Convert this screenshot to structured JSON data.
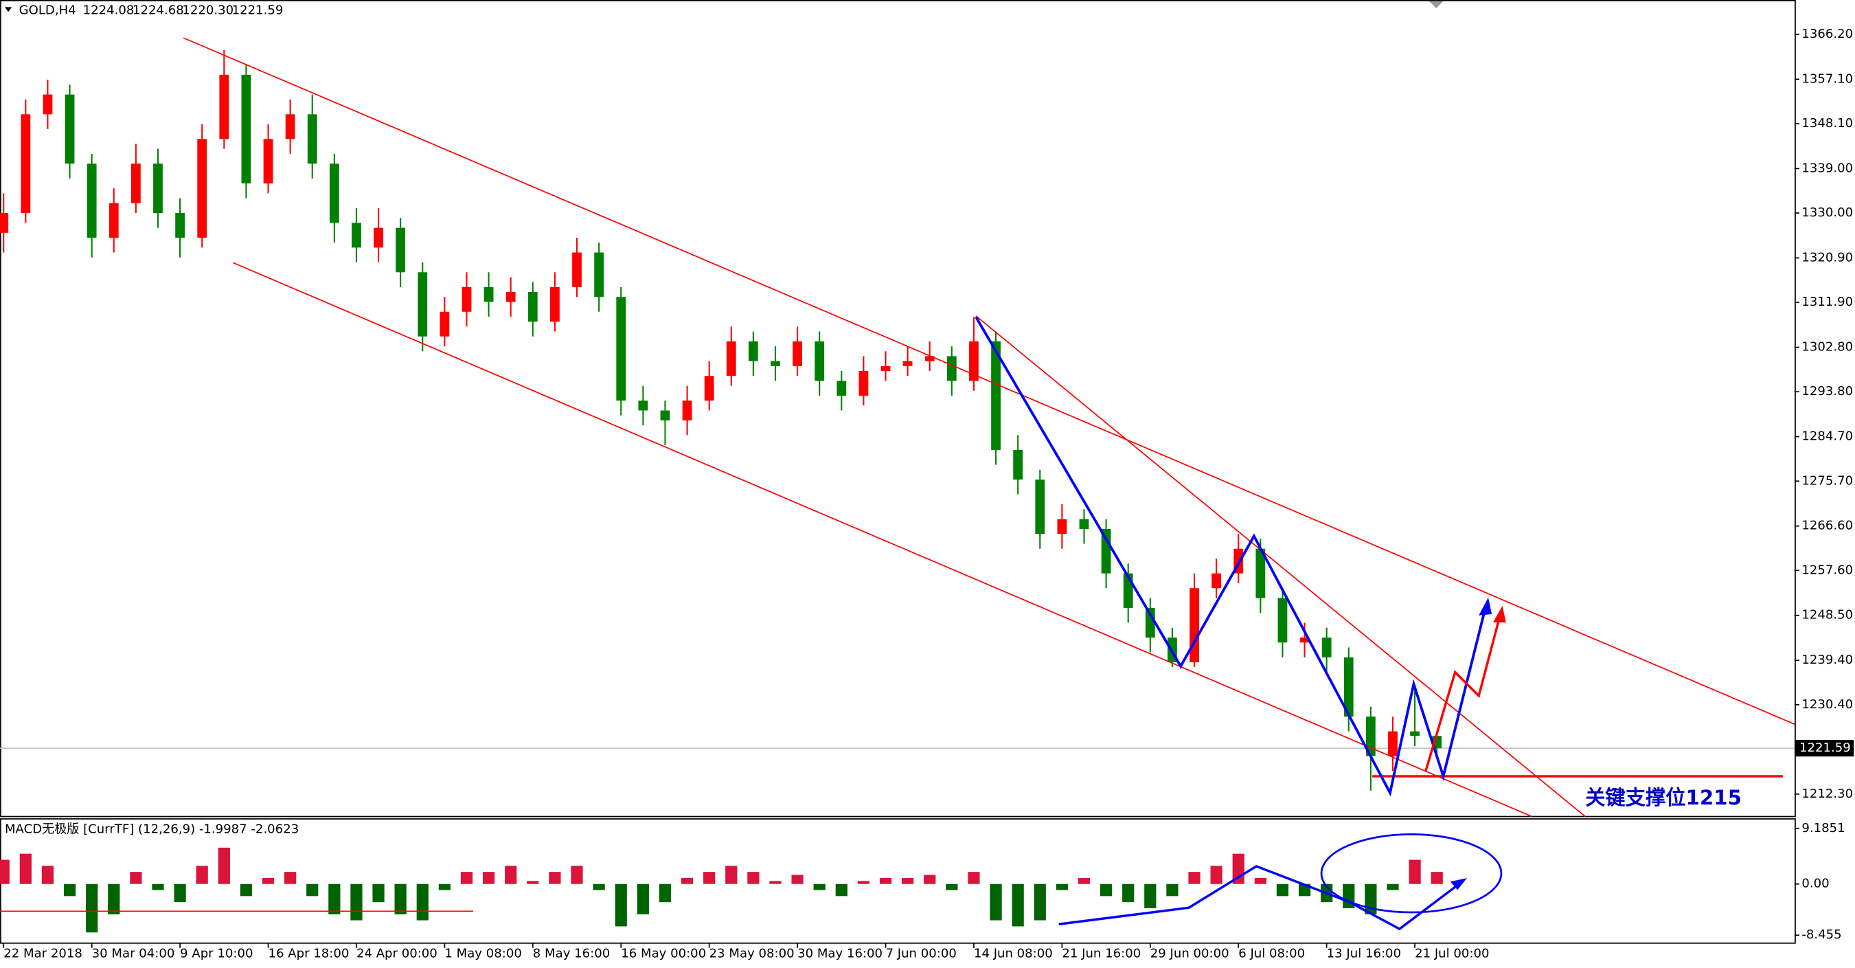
{
  "chart_data": [
    {
      "type": "candlestick",
      "symbol": "GOLD,H4",
      "ohlc_labels": [
        "1224.08",
        "1224.68",
        "1220.30",
        "1221.59"
      ],
      "annotation": "关键支撑位1215",
      "up_color": "#ff0000",
      "down_color": "#008000",
      "x": [
        0,
        8,
        16,
        24,
        32,
        40,
        48,
        56,
        64,
        72,
        80,
        88,
        96,
        104,
        112,
        120,
        128,
        136,
        144,
        152,
        160,
        168,
        176,
        184,
        192,
        200,
        208,
        216,
        224,
        232,
        240,
        248,
        256,
        264,
        272,
        280,
        288,
        296,
        304,
        312,
        320,
        328,
        336,
        344,
        352,
        360,
        368,
        376,
        384,
        392,
        400,
        408,
        416,
        424,
        432,
        440,
        448,
        456,
        464,
        472,
        480,
        488,
        496,
        504,
        512,
        520
      ],
      "open": [
        1326,
        1330,
        1350,
        1354,
        1340,
        1325,
        1332,
        1340,
        1330,
        1325,
        1345,
        1358,
        1336,
        1345,
        1350,
        1340,
        1328,
        1323,
        1327,
        1318,
        1305,
        1310,
        1315,
        1312,
        1314,
        1308,
        1315,
        1322,
        1313,
        1292,
        1290,
        1288,
        1292,
        1297,
        1304,
        1300,
        1299,
        1304,
        1296,
        1293,
        1298,
        1299,
        1300,
        1301,
        1296,
        1304,
        1282,
        1276,
        1265,
        1268,
        1266,
        1257,
        1250,
        1244,
        1239,
        1254,
        1257,
        1262,
        1252,
        1243,
        1244,
        1240,
        1228,
        1220,
        1225,
        1224.08
      ],
      "high": [
        1334,
        1353,
        1357,
        1356,
        1342,
        1335,
        1344,
        1343,
        1333,
        1348,
        1363,
        1360,
        1348,
        1353,
        1354,
        1342,
        1331,
        1331,
        1329,
        1320,
        1313,
        1318,
        1318,
        1317,
        1316,
        1318,
        1325,
        1324,
        1315,
        1295,
        1292,
        1295,
        1300,
        1307,
        1306,
        1303,
        1307,
        1306,
        1298,
        1301,
        1302,
        1303,
        1304,
        1303,
        1309,
        1306,
        1285,
        1278,
        1271,
        1270,
        1268,
        1259,
        1252,
        1246,
        1257,
        1260,
        1265,
        1264,
        1254,
        1247,
        1246,
        1242,
        1230,
        1228,
        1234,
        1224.68
      ],
      "low": [
        1322,
        1328,
        1347,
        1337,
        1321,
        1322,
        1330,
        1327,
        1321,
        1323,
        1343,
        1333,
        1334,
        1342,
        1337,
        1324,
        1320,
        1320,
        1315,
        1302,
        1303,
        1307,
        1309,
        1309,
        1305,
        1306,
        1313,
        1310,
        1289,
        1287,
        1283,
        1285,
        1290,
        1295,
        1297,
        1296,
        1297,
        1293,
        1290,
        1291,
        1296,
        1297,
        1298,
        1293,
        1294,
        1279,
        1273,
        1262,
        1262,
        1263,
        1254,
        1247,
        1241,
        1238,
        1238,
        1252,
        1255,
        1249,
        1240,
        1240,
        1237,
        1225,
        1213,
        1217,
        1222,
        1220.3
      ],
      "close": [
        1330,
        1350,
        1354,
        1340,
        1325,
        1332,
        1340,
        1330,
        1325,
        1345,
        1358,
        1336,
        1345,
        1350,
        1340,
        1328,
        1323,
        1327,
        1318,
        1305,
        1310,
        1315,
        1312,
        1314,
        1308,
        1315,
        1322,
        1313,
        1292,
        1290,
        1288,
        1292,
        1297,
        1304,
        1300,
        1299,
        1304,
        1296,
        1293,
        1298,
        1299,
        1300,
        1301,
        1296,
        1304,
        1282,
        1276,
        1265,
        1268,
        1266,
        1257,
        1250,
        1244,
        1239,
        1254,
        1257,
        1262,
        1252,
        1243,
        1244,
        1240,
        1228,
        1220,
        1225,
        1224.08,
        1221.59
      ],
      "current_price": {
        "value": 1221.59,
        "label": "1221.59"
      },
      "xlim": [
        0,
        650
      ],
      "xticks": [
        {
          "value": 0,
          "label": "22 Mar 2018"
        },
        {
          "value": 32,
          "label": "30 Mar 04:00"
        },
        {
          "value": 64,
          "label": "9 Apr 10:00"
        },
        {
          "value": 96,
          "label": "16 Apr 18:00"
        },
        {
          "value": 128,
          "label": "24 Apr 00:00"
        },
        {
          "value": 160,
          "label": "1 May 08:00"
        },
        {
          "value": 192,
          "label": "8 May 16:00"
        },
        {
          "value": 224,
          "label": "16 May 00:00"
        },
        {
          "value": 256,
          "label": "23 May 08:00"
        },
        {
          "value": 288,
          "label": "30 May 16:00"
        },
        {
          "value": 320,
          "label": "7 Jun 00:00"
        },
        {
          "value": 352,
          "label": "14 Jun 08:00"
        },
        {
          "value": 384,
          "label": "21 Jun 16:00"
        },
        {
          "value": 416,
          "label": "29 Jun 00:00"
        },
        {
          "value": 448,
          "label": "6 Jul 08:00"
        },
        {
          "value": 480,
          "label": "13 Jul 16:00"
        },
        {
          "value": 512,
          "label": "21 Jul 00:00"
        }
      ],
      "ylim": [
        1207.75,
        1373.15
      ],
      "yticks": [
        {
          "value": 1366.2,
          "label": "1366.20"
        },
        {
          "value": 1357.1,
          "label": "1357.10"
        },
        {
          "value": 1348.1,
          "label": "1348.10"
        },
        {
          "value": 1339,
          "label": "1339.00"
        },
        {
          "value": 1330,
          "label": "1330.00"
        },
        {
          "value": 1320.9,
          "label": "1320.90"
        },
        {
          "value": 1311.9,
          "label": "1311.90"
        },
        {
          "value": 1302.8,
          "label": "1302.80"
        },
        {
          "value": 1293.8,
          "label": "1293.80"
        },
        {
          "value": 1284.7,
          "label": "1284.70"
        },
        {
          "value": 1275.7,
          "label": "1275.70"
        },
        {
          "value": 1266.6,
          "label": "1266.60"
        },
        {
          "value": 1257.6,
          "label": "1257.60"
        },
        {
          "value": 1248.5,
          "label": "1248.50"
        },
        {
          "value": 1239.4,
          "label": "1239.40"
        },
        {
          "value": 1230.4,
          "label": "1230.40"
        },
        {
          "value": 1212.3,
          "label": "1212.30"
        }
      ]
    },
    {
      "type": "bar",
      "title": "MACD无极版 [CurrTF] (12,26,9) -1.9987 -2.0623",
      "up_color": "#dc143c",
      "down_color": "#006400",
      "values": [
        4,
        5,
        3,
        -2,
        -8,
        -5,
        2,
        -1,
        -3,
        3,
        6,
        -2,
        1,
        2,
        -2,
        -5,
        -6,
        -3,
        -5,
        -6,
        -1,
        2,
        2,
        3,
        0.5,
        2,
        3,
        -1,
        -7,
        -5,
        -3,
        1,
        2,
        3,
        2,
        0.5,
        1.5,
        -1,
        -2,
        0.5,
        1,
        1,
        1.5,
        -1,
        2,
        -6,
        -7,
        -6,
        -1,
        1,
        -2,
        -3,
        -4,
        -2,
        2,
        3,
        5,
        1,
        -2,
        -2,
        -3,
        -4,
        -5,
        -1,
        4,
        2
      ],
      "ylim": [
        -9.77,
        10.75
      ],
      "yticks": [
        9.1851,
        {
          "value": 0,
          "label": "0.00"
        },
        -8.455
      ]
    }
  ]
}
